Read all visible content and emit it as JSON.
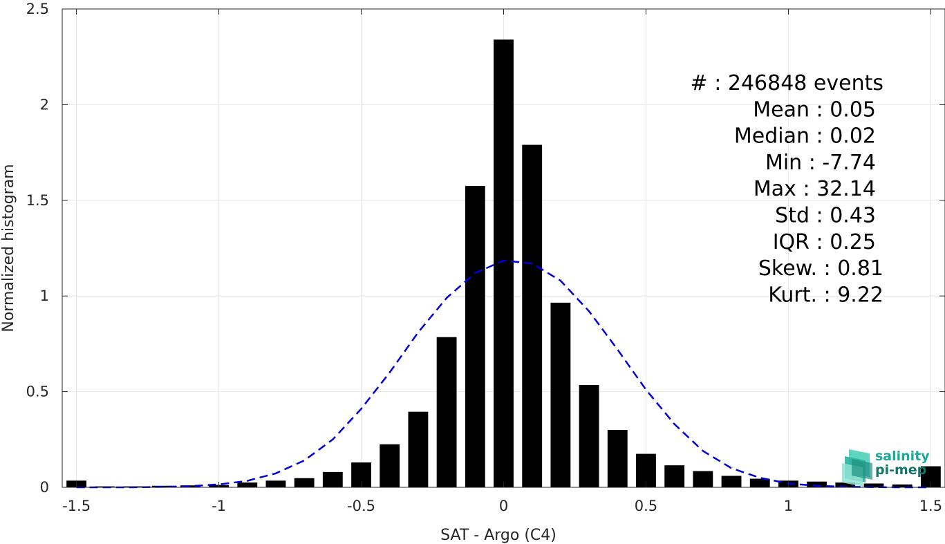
{
  "chart_data": {
    "type": "bar",
    "xlabel": "SAT - Argo (C4)",
    "ylabel": "Normalized histogram",
    "xlim": [
      -1.55,
      1.55
    ],
    "ylim": [
      0,
      2.5
    ],
    "xticks": [
      -1.5,
      -1,
      -0.5,
      0,
      0.5,
      1,
      1.5
    ],
    "xtick_labels": [
      "-1.5",
      "-1",
      "-0.5",
      "0",
      "0.5",
      "1",
      "1.5"
    ],
    "yticks": [
      0,
      0.5,
      1,
      1.5,
      2,
      2.5
    ],
    "ytick_labels": [
      "0",
      "0.5",
      "1",
      "1.5",
      "2",
      "2.5"
    ],
    "grid": true,
    "bar_width": 0.07,
    "bar_color": "#000000",
    "series": [
      {
        "type": "bar",
        "x": [
          -1.5,
          -1.4,
          -1.3,
          -1.2,
          -1.1,
          -1.0,
          -0.9,
          -0.8,
          -0.7,
          -0.6,
          -0.5,
          -0.4,
          -0.3,
          -0.2,
          -0.1,
          0.0,
          0.1,
          0.2,
          0.3,
          0.4,
          0.5,
          0.6,
          0.7,
          0.8,
          0.9,
          1.0,
          1.1,
          1.2,
          1.3,
          1.4,
          1.5
        ],
        "values": [
          0.035,
          0.005,
          0.005,
          0.008,
          0.01,
          0.012,
          0.025,
          0.035,
          0.048,
          0.08,
          0.13,
          0.225,
          0.395,
          0.785,
          1.575,
          2.34,
          1.79,
          0.965,
          0.535,
          0.3,
          0.175,
          0.115,
          0.085,
          0.06,
          0.045,
          0.035,
          0.03,
          0.025,
          0.02,
          0.015,
          0.11
        ]
      },
      {
        "type": "line",
        "style": "dashed",
        "color": "#0000dd",
        "x": [
          -1.5,
          -1.4,
          -1.3,
          -1.2,
          -1.1,
          -1.0,
          -0.9,
          -0.8,
          -0.7,
          -0.6,
          -0.5,
          -0.4,
          -0.3,
          -0.2,
          -0.1,
          0.0,
          0.1,
          0.2,
          0.3,
          0.4,
          0.5,
          0.6,
          0.7,
          0.8,
          0.9,
          1.0,
          1.1,
          1.2,
          1.3,
          1.4,
          1.5
        ],
        "values": [
          0.0,
          0.0,
          0.0,
          0.002,
          0.006,
          0.015,
          0.034,
          0.073,
          0.14,
          0.25,
          0.41,
          0.6,
          0.81,
          0.99,
          1.12,
          1.185,
          1.17,
          1.08,
          0.92,
          0.72,
          0.51,
          0.33,
          0.19,
          0.1,
          0.05,
          0.02,
          0.008,
          0.003,
          0.001,
          0.0,
          0.0
        ]
      }
    ]
  },
  "stats": [
    "#  : 246848 events",
    "Mean : 0.05",
    "Median : 0.02",
    "Min : -7.74",
    "Max : 32.14",
    "Std : 0.43",
    "IQR : 0.25",
    "Skew. : 0.81",
    "Kurt. : 9.22"
  ],
  "logo": {
    "line1": "salinity",
    "line2": "pi-mep",
    "color1": "#1aa89a",
    "color2": "#15756a"
  }
}
